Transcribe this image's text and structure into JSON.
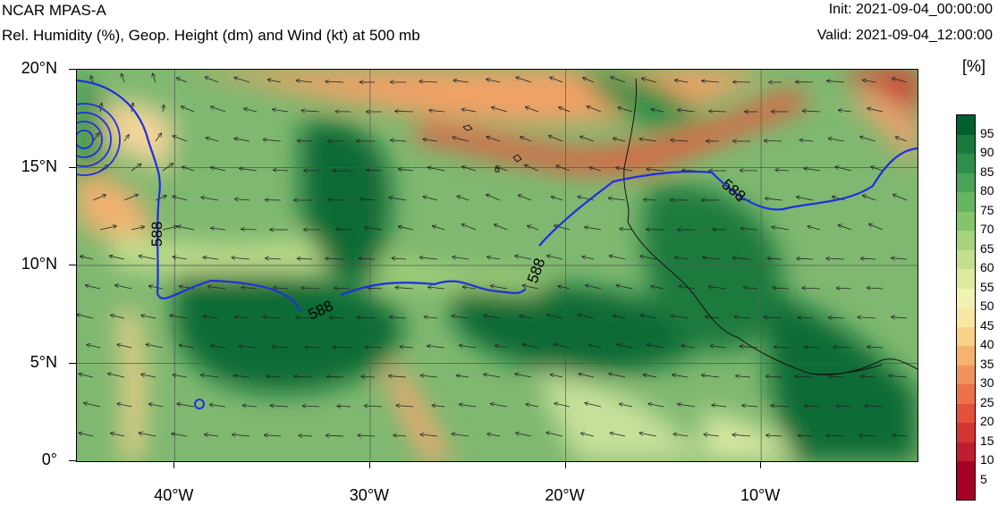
{
  "header": {
    "model_title": "NCAR MPAS-A",
    "field_title": "Rel. Humidity (%), Geop. Height (dm) and Wind (kt) at 500 mb",
    "init_time": "Init: 2021-09-04_00:00:00",
    "valid_time": "Valid: 2021-09-04_12:00:00"
  },
  "map": {
    "lat_labels": [
      "20°N",
      "15°N",
      "10°N",
      "5°N",
      "0°"
    ],
    "lon_labels": [
      "40°W",
      "30°W",
      "20°W",
      "10°W"
    ],
    "lat_values": [
      20,
      15,
      10,
      5,
      0
    ],
    "lon_values": [
      -40,
      -30,
      -20,
      -10
    ],
    "lon_range": [
      -45,
      -2
    ],
    "lat_range": [
      0,
      20
    ],
    "contour_labels": [
      "588",
      "588",
      "588",
      "588"
    ],
    "contour_color": "#1f2fe0",
    "vector_color": "#222222"
  },
  "colorbar": {
    "unit": "[%]",
    "levels": [
      "95",
      "90",
      "85",
      "80",
      "75",
      "70",
      "65",
      "60",
      "55",
      "50",
      "45",
      "40",
      "35",
      "30",
      "25",
      "20",
      "15",
      "10",
      "5"
    ],
    "colors": [
      "#00602f",
      "#1a7a3e",
      "#2f8f4a",
      "#4aa356",
      "#67b461",
      "#85c46c",
      "#a5d27a",
      "#c3df8e",
      "#dcea9f",
      "#f1f2b4",
      "#f8e7a4",
      "#f9d28a",
      "#f6b370",
      "#f1935c",
      "#ec724b",
      "#e2513b",
      "#d33631",
      "#be1e2d",
      "#a50026"
    ]
  }
}
